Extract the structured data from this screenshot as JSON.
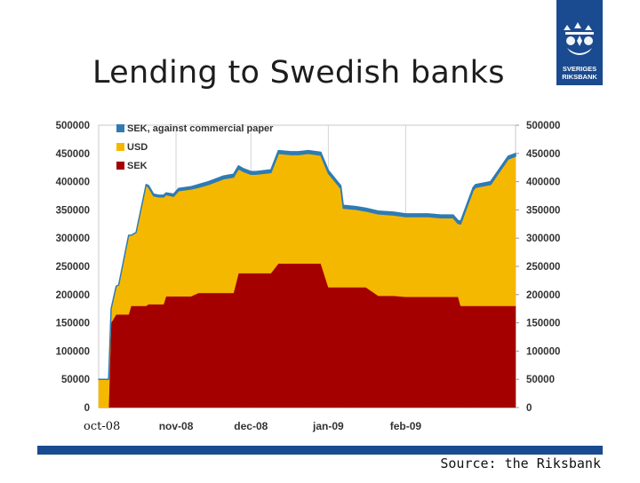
{
  "slide": {
    "title": "Lending to Swedish banks",
    "source": "Source: the Riksbank",
    "logo_text_line1": "SVERIGES",
    "logo_text_line2": "RIKSBANK"
  },
  "colors": {
    "brand_blue": "#1a4a8f",
    "sek": "#a50000",
    "usd": "#f5b800",
    "sek_cp": "#2e7bb4"
  },
  "chart_data": {
    "type": "area",
    "stacked": true,
    "title": "",
    "xlabel": "",
    "ylabel": "",
    "ylim": [
      0,
      500000
    ],
    "yticks": [
      0,
      50000,
      100000,
      150000,
      200000,
      250000,
      300000,
      350000,
      400000,
      450000,
      500000
    ],
    "ytick_labels": [
      "0",
      "50000",
      "100000",
      "150000",
      "200000",
      "250000",
      "300000",
      "350000",
      "400000",
      "450000",
      "500000"
    ],
    "axes": [
      "left",
      "right"
    ],
    "grid": "vertical at month starts",
    "legend_position": "top-left",
    "xlim": [
      "2008-10-01",
      "2009-03-17"
    ],
    "x_ticks": [
      {
        "date": "2008-10-01",
        "label": "oct-08"
      },
      {
        "date": "2008-11-01",
        "label": "nov-08"
      },
      {
        "date": "2008-12-01",
        "label": "dec-08"
      },
      {
        "date": "2009-01-01",
        "label": "jan-09"
      },
      {
        "date": "2009-02-01",
        "label": "feb-09"
      }
    ],
    "x": [
      "2008-10-01",
      "2008-10-05",
      "2008-10-06",
      "2008-10-08",
      "2008-10-09",
      "2008-10-13",
      "2008-10-14",
      "2008-10-16",
      "2008-10-20",
      "2008-10-21",
      "2008-10-23",
      "2008-10-25",
      "2008-10-27",
      "2008-10-28",
      "2008-10-31",
      "2008-11-02",
      "2008-11-07",
      "2008-11-10",
      "2008-11-14",
      "2008-11-20",
      "2008-11-24",
      "2008-11-26",
      "2008-11-28",
      "2008-12-01",
      "2008-12-03",
      "2008-12-09",
      "2008-12-12",
      "2008-12-17",
      "2008-12-20",
      "2008-12-24",
      "2008-12-29",
      "2009-01-01",
      "2009-01-06",
      "2009-01-07",
      "2009-01-12",
      "2009-01-16",
      "2009-01-21",
      "2009-01-27",
      "2009-02-01",
      "2009-02-05",
      "2009-02-10",
      "2009-02-15",
      "2009-02-20",
      "2009-02-22",
      "2009-02-23",
      "2009-02-28",
      "2009-03-01",
      "2009-03-07",
      "2009-03-14",
      "2009-03-17"
    ],
    "series": [
      {
        "name": "SEK",
        "color": "#a50000",
        "values": [
          0,
          0,
          150000,
          165000,
          165000,
          165000,
          180000,
          180000,
          180000,
          183000,
          183000,
          183000,
          183000,
          197000,
          197000,
          197000,
          197000,
          203000,
          203000,
          203000,
          203000,
          238000,
          238000,
          238000,
          238000,
          238000,
          255000,
          255000,
          255000,
          255000,
          255000,
          213000,
          213000,
          213000,
          213000,
          213000,
          198000,
          198000,
          196000,
          196000,
          196000,
          196000,
          196000,
          196000,
          180000,
          180000,
          180000,
          180000,
          180000,
          180000
        ]
      },
      {
        "name": "USD",
        "color": "#f5b800",
        "values": [
          50000,
          50000,
          25000,
          50000,
          52000,
          140000,
          125000,
          130000,
          215000,
          207000,
          192000,
          190000,
          190000,
          180000,
          177000,
          187000,
          190000,
          187000,
          192000,
          202000,
          205000,
          185000,
          180000,
          175000,
          175000,
          178000,
          195000,
          193000,
          193000,
          195000,
          192000,
          202000,
          175000,
          140000,
          138000,
          135000,
          145000,
          143000,
          142000,
          142000,
          142000,
          140000,
          140000,
          130000,
          145000,
          205000,
          210000,
          215000,
          260000,
          265000
        ]
      },
      {
        "name": "SEK, against commercial paper",
        "color": "#2e7bb4",
        "values": [
          0,
          0,
          0,
          0,
          0,
          0,
          0,
          0,
          0,
          3000,
          3000,
          3000,
          3000,
          3000,
          4000,
          4000,
          4000,
          5000,
          5000,
          5000,
          5000,
          5000,
          5000,
          5000,
          5000,
          5000,
          5000,
          5000,
          5000,
          5000,
          5000,
          5000,
          5000,
          5000,
          5000,
          5000,
          5000,
          5000,
          5000,
          5000,
          5000,
          5000,
          5000,
          5000,
          5000,
          5000,
          5000,
          5000,
          5000,
          5000
        ]
      }
    ]
  }
}
